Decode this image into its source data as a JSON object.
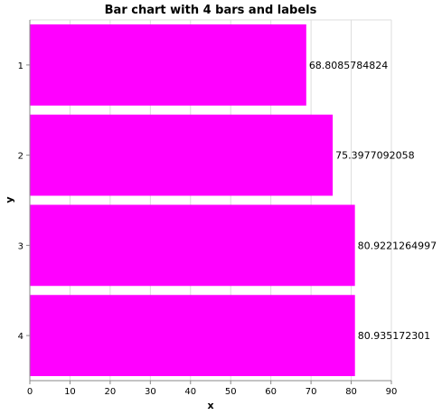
{
  "chart_data": {
    "type": "bar",
    "orientation": "horizontal",
    "title": "Bar chart with 4 bars and labels",
    "xlabel": "x",
    "ylabel": "y",
    "categories": [
      "1",
      "2",
      "3",
      "4"
    ],
    "values": [
      68.8085784824,
      75.3977092058,
      80.9221264997,
      80.935172301
    ],
    "value_labels": [
      "68.8085784824",
      "75.3977092058",
      "80.9221264997",
      "80.935172301"
    ],
    "xlim": [
      0,
      90
    ],
    "xticks": [
      0,
      10,
      20,
      30,
      40,
      50,
      60,
      70,
      80,
      90
    ],
    "grid": true,
    "bar_color": "#ff00ff"
  }
}
